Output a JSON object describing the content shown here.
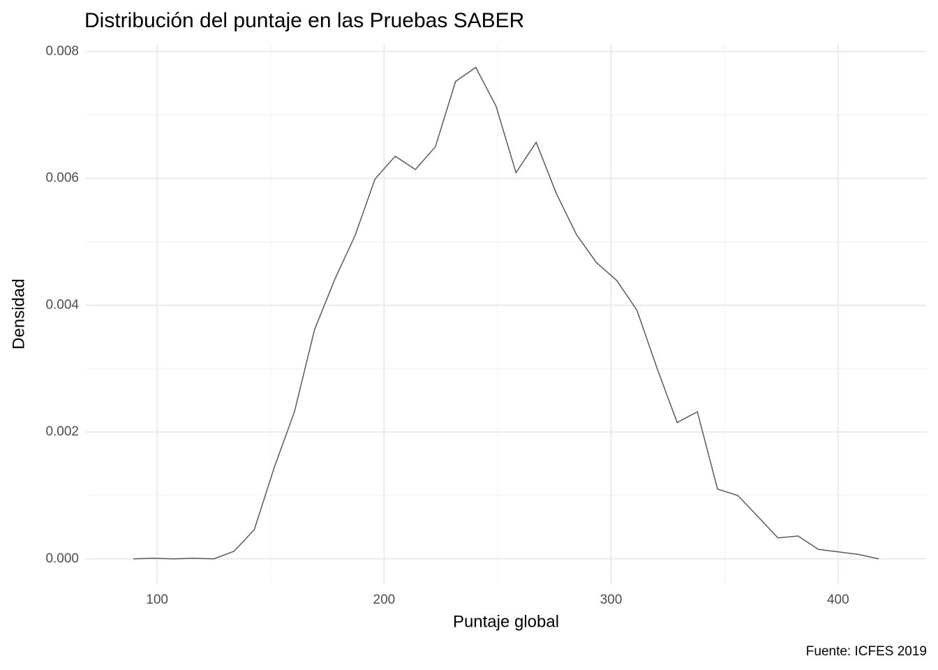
{
  "chart_data": {
    "type": "line",
    "title": "Distribución del puntaje en las Pruebas SABER",
    "x_label": "Puntaje global",
    "y_label": "Densidad",
    "caption": "Fuente: ICFES 2019",
    "x": [
      89.5,
      98.4,
      107.3,
      116.1,
      125.0,
      133.9,
      142.8,
      151.6,
      160.5,
      169.4,
      178.3,
      187.1,
      196.0,
      204.9,
      213.8,
      222.6,
      231.5,
      240.4,
      249.3,
      258.1,
      267.0,
      275.9,
      284.8,
      293.6,
      302.5,
      311.4,
      320.3,
      329.1,
      338.0,
      346.9,
      355.8,
      364.6,
      373.5,
      382.4,
      391.3,
      400.1,
      409.0,
      417.9
    ],
    "series": [
      {
        "color": "#595959",
        "values": [
          0,
          1e-05,
          0,
          1e-05,
          0,
          0.00012,
          0.00046,
          0.00144,
          0.00232,
          0.00362,
          0.00441,
          0.00509,
          0.00599,
          0.00635,
          0.00614,
          0.0065,
          0.00753,
          0.00775,
          0.00714,
          0.00609,
          0.00657,
          0.00576,
          0.00511,
          0.00467,
          0.00439,
          0.00392,
          0.003,
          0.00215,
          0.00232,
          0.0011,
          0.001,
          0.00067,
          0.00033,
          0.00036,
          0.00015,
          0.00011,
          7e-05,
          0
        ]
      }
    ],
    "xlim": [
      68.6,
      439.1
    ],
    "ylim": [
      -0.00041,
      0.00812
    ],
    "xticks": [
      100,
      200,
      300,
      400
    ],
    "xminor": [
      150,
      250,
      350
    ],
    "yticks": [
      {
        "value": 0,
        "label": "0.000"
      },
      {
        "value": 0.002,
        "label": "0.002"
      },
      {
        "value": 0.004,
        "label": "0.004"
      },
      {
        "value": 0.006,
        "label": "0.006"
      },
      {
        "value": 0.008,
        "label": "0.008"
      }
    ],
    "yminor": [
      0.001,
      0.003,
      0.005,
      0.007
    ],
    "grid": true
  }
}
